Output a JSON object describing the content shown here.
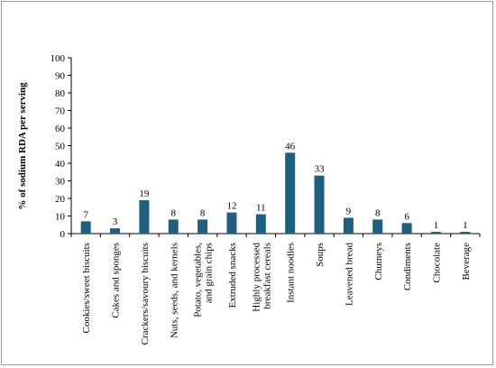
{
  "chart_data": {
    "type": "bar",
    "title": "",
    "xlabel": "",
    "ylabel": "% of sodium RDA per serving",
    "ylim": [
      0,
      100
    ],
    "yticks": [
      0,
      10,
      20,
      30,
      40,
      50,
      60,
      70,
      80,
      90,
      100
    ],
    "grid": false,
    "legend": "none",
    "bar_color": "#1f5f7f",
    "categories": [
      [
        "Cookies/sweet biscuits"
      ],
      [
        "Cakes and sponges"
      ],
      [
        "Crackers/savoury biscuits"
      ],
      [
        "Nuts, seeds, and kernels"
      ],
      [
        "Potato, vegetables,",
        "and grain chips"
      ],
      [
        "Extruded snacks"
      ],
      [
        "Highly processed",
        "breakfast cereals"
      ],
      [
        "Instant noodles"
      ],
      [
        "Soups"
      ],
      [
        "Leavened bread"
      ],
      [
        "Chutneys"
      ],
      [
        "Condiments"
      ],
      [
        "Chocolate"
      ],
      [
        "Beverage"
      ]
    ],
    "values": [
      7,
      3,
      19,
      8,
      8,
      12,
      11,
      46,
      33,
      9,
      8,
      6,
      1,
      1
    ]
  }
}
